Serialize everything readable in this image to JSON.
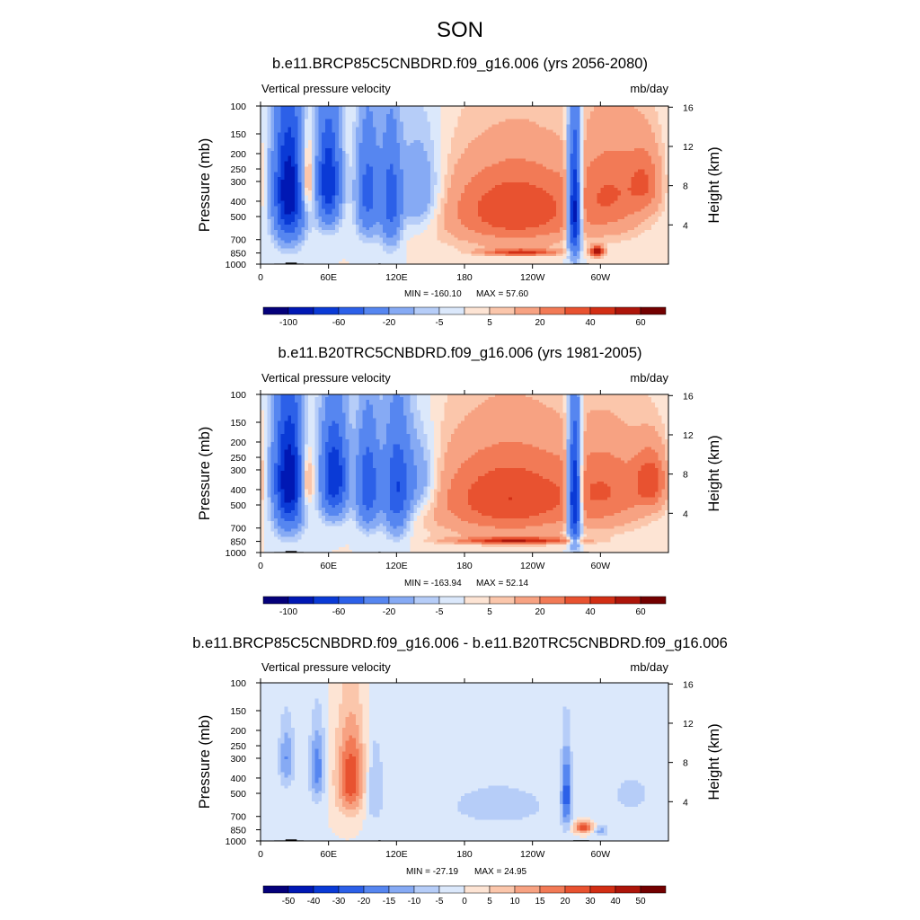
{
  "main_title": "SON",
  "chart_data": [
    {
      "type": "heatmap",
      "title": "b.e11.BRCP85C5CNBDRD.f09_g16.006 (yrs 2056-2080)",
      "variable": "Vertical pressure velocity",
      "units": "mb/day",
      "ylabel": "Pressure (mb)",
      "ylabel_right": "Height (km)",
      "y_ticks": [
        "100",
        "150",
        "200",
        "250",
        "300",
        "400",
        "500",
        "700",
        "850",
        "1000"
      ],
      "x_ticks": [
        "0",
        "60E",
        "120E",
        "180",
        "120W",
        "60W"
      ],
      "right_ticks": [
        "16",
        "12",
        "8",
        "4"
      ],
      "min_label": "MIN = -160.10",
      "max_label": "MAX =  57.60",
      "colorbar_labels": [
        "-100",
        "-60",
        "-20",
        "-5",
        "5",
        "20",
        "40",
        "60"
      ],
      "blobs": [
        {
          "lon": 25,
          "p": 350,
          "lw": 9,
          "ph": 300,
          "v": -100
        },
        {
          "lon": 40,
          "p": 300,
          "lw": 5,
          "ph": 160,
          "v": 30
        },
        {
          "lon": 60,
          "p": 300,
          "lw": 7,
          "ph": 220,
          "v": -80
        },
        {
          "lon": 95,
          "p": 350,
          "lw": 7,
          "ph": 260,
          "v": -50
        },
        {
          "lon": 115,
          "p": 400,
          "lw": 6,
          "ph": 300,
          "v": -50
        },
        {
          "lon": 140,
          "p": 350,
          "lw": 14,
          "ph": 220,
          "v": -25
        },
        {
          "lon": 225,
          "p": 450,
          "lw": 45,
          "ph": 280,
          "v": 40
        },
        {
          "lon": 230,
          "p": 840,
          "lw": 22,
          "ph": 40,
          "v": 40
        },
        {
          "lon": 277,
          "p": 450,
          "lw": 4,
          "ph": 350,
          "v": -110
        },
        {
          "lon": 312,
          "p": 350,
          "lw": 22,
          "ph": 260,
          "v": 25
        },
        {
          "lon": 297,
          "p": 830,
          "lw": 4,
          "ph": 60,
          "v": 60
        },
        {
          "lon": 340,
          "p": 300,
          "lw": 10,
          "ph": 150,
          "v": 20
        }
      ]
    },
    {
      "type": "heatmap",
      "title": "b.e11.B20TRC5CNBDRD.f09_g16.006 (yrs 1981-2005)",
      "variable": "Vertical pressure velocity",
      "units": "mb/day",
      "ylabel": "Pressure (mb)",
      "ylabel_right": "Height (km)",
      "y_ticks": [
        "100",
        "150",
        "200",
        "250",
        "300",
        "400",
        "500",
        "700",
        "850",
        "1000"
      ],
      "x_ticks": [
        "0",
        "60E",
        "120E",
        "180",
        "120W",
        "60W"
      ],
      "right_ticks": [
        "16",
        "12",
        "8",
        "4"
      ],
      "min_label": "MIN = -163.94",
      "max_label": "MAX =  52.14",
      "colorbar_labels": [
        "-100",
        "-60",
        "-20",
        "-5",
        "5",
        "20",
        "40",
        "60"
      ],
      "blobs": [
        {
          "lon": 25,
          "p": 350,
          "lw": 9,
          "ph": 300,
          "v": -100
        },
        {
          "lon": 40,
          "p": 350,
          "lw": 5,
          "ph": 160,
          "v": 30
        },
        {
          "lon": 65,
          "p": 330,
          "lw": 8,
          "ph": 220,
          "v": -80
        },
        {
          "lon": 95,
          "p": 380,
          "lw": 7,
          "ph": 260,
          "v": -60
        },
        {
          "lon": 120,
          "p": 400,
          "lw": 8,
          "ph": 300,
          "v": -60
        },
        {
          "lon": 140,
          "p": 350,
          "lw": 12,
          "ph": 200,
          "v": -25
        },
        {
          "lon": 220,
          "p": 450,
          "lw": 50,
          "ph": 300,
          "v": 40
        },
        {
          "lon": 225,
          "p": 840,
          "lw": 35,
          "ph": 40,
          "v": 45
        },
        {
          "lon": 277,
          "p": 450,
          "lw": 4,
          "ph": 350,
          "v": -110
        },
        {
          "lon": 310,
          "p": 400,
          "lw": 25,
          "ph": 260,
          "v": 22
        },
        {
          "lon": 345,
          "p": 350,
          "lw": 10,
          "ph": 150,
          "v": 30
        }
      ]
    },
    {
      "type": "heatmap",
      "title": "b.e11.BRCP85C5CNBDRD.f09_g16.006 - b.e11.B20TRC5CNBDRD.f09_g16.006",
      "variable": "Vertical pressure velocity",
      "units": "mb/day",
      "ylabel": "Pressure (mb)",
      "ylabel_right": "Height (km)",
      "y_ticks": [
        "100",
        "150",
        "200",
        "250",
        "300",
        "400",
        "500",
        "700",
        "850",
        "1000"
      ],
      "x_ticks": [
        "0",
        "60E",
        "120E",
        "180",
        "120W",
        "60W"
      ],
      "right_ticks": [
        "16",
        "12",
        "8",
        "4"
      ],
      "min_label": "MIN = -27.19",
      "max_label": "MAX =  24.95",
      "colorbar_labels": [
        "-50",
        "-40",
        "-30",
        "-20",
        "-15",
        "-10",
        "-5",
        "0",
        "5",
        "10",
        "15",
        "20",
        "30",
        "40",
        "50"
      ],
      "blobs": [
        {
          "lon": 23,
          "p": 300,
          "lw": 5,
          "ph": 150,
          "v": -15
        },
        {
          "lon": 50,
          "p": 350,
          "lw": 5,
          "ph": 200,
          "v": -18
        },
        {
          "lon": 80,
          "p": 400,
          "lw": 9,
          "ph": 260,
          "v": 25
        },
        {
          "lon": 100,
          "p": 450,
          "lw": 6,
          "ph": 300,
          "v": -10
        },
        {
          "lon": 210,
          "p": 600,
          "lw": 60,
          "ph": 350,
          "v": -6
        },
        {
          "lon": 270,
          "p": 500,
          "lw": 3,
          "ph": 300,
          "v": -20
        },
        {
          "lon": 285,
          "p": 820,
          "lw": 6,
          "ph": 70,
          "v": 28
        },
        {
          "lon": 300,
          "p": 860,
          "lw": 5,
          "ph": 60,
          "v": -12
        },
        {
          "lon": 330,
          "p": 500,
          "lw": 20,
          "ph": 250,
          "v": -5
        }
      ]
    }
  ]
}
